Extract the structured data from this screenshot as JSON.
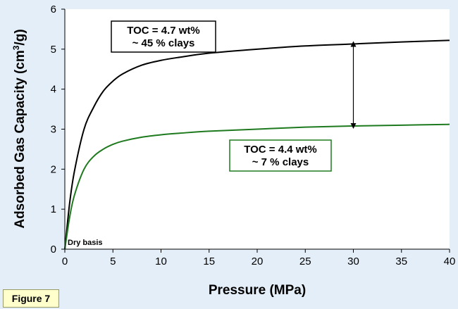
{
  "figure_label": "Figure 7",
  "chart_data": {
    "type": "line",
    "title": "",
    "xlabel": "Pressure (MPa)",
    "ylabel": "Adsorbed Gas Capacity (cm³/g)",
    "xlim": [
      0,
      40
    ],
    "ylim": [
      0,
      6
    ],
    "x_ticks": [
      "0",
      "5",
      "10",
      "15",
      "20",
      "25",
      "30",
      "35",
      "40"
    ],
    "y_ticks": [
      "0",
      "1",
      "2",
      "3",
      "4",
      "5",
      "6"
    ],
    "grid": false,
    "series": [
      {
        "color": "#000000",
        "x": [
          0,
          0.5,
          1,
          2,
          3,
          4,
          5,
          6,
          8,
          10,
          12,
          15,
          20,
          25,
          30,
          35,
          40
        ],
        "y": [
          0,
          1.15,
          1.95,
          3.0,
          3.55,
          3.95,
          4.2,
          4.38,
          4.6,
          4.72,
          4.8,
          4.9,
          5.0,
          5.08,
          5.13,
          5.18,
          5.22
        ]
      },
      {
        "color": "#1e7a1e",
        "x": [
          0,
          0.5,
          1,
          2,
          3,
          4,
          5,
          6,
          8,
          10,
          12,
          15,
          20,
          25,
          30,
          35,
          40
        ],
        "y": [
          0,
          0.8,
          1.35,
          2.0,
          2.32,
          2.5,
          2.62,
          2.7,
          2.8,
          2.86,
          2.9,
          2.95,
          3.0,
          3.05,
          3.08,
          3.1,
          3.12
        ]
      }
    ],
    "annotations": {
      "box1_line1": "TOC = 4.7 wt%",
      "box1_line2": "~ 45 % clays",
      "box2_line1": "TOC = 4.4 wt%",
      "box2_line2": "~ 7 % clays",
      "basis_note": "Dry basis",
      "arrow": {
        "x": 30,
        "y_from": 5.13,
        "y_to": 3.08
      }
    }
  },
  "colors": {
    "background": "#e4eef8",
    "plot_background": "#ffffff",
    "series1": "#000000",
    "series2": "#1e7a1e",
    "label_background": "#ffffcc"
  }
}
